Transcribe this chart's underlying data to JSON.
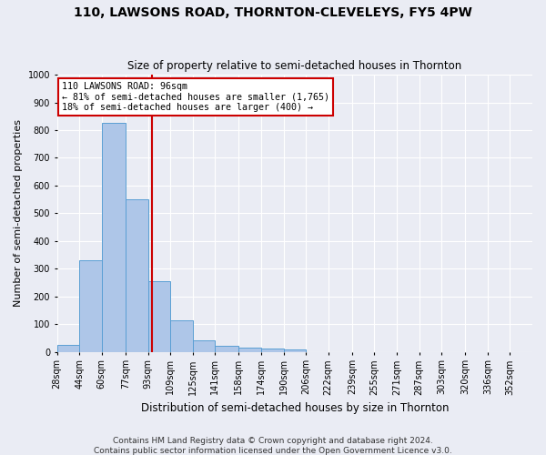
{
  "title": "110, LAWSONS ROAD, THORNTON-CLEVELEYS, FY5 4PW",
  "subtitle": "Size of property relative to semi-detached houses in Thornton",
  "xlabel": "Distribution of semi-detached houses by size in Thornton",
  "ylabel": "Number of semi-detached properties",
  "bin_labels": [
    "28sqm",
    "44sqm",
    "60sqm",
    "77sqm",
    "93sqm",
    "109sqm",
    "125sqm",
    "141sqm",
    "158sqm",
    "174sqm",
    "190sqm",
    "206sqm",
    "222sqm",
    "239sqm",
    "255sqm",
    "271sqm",
    "287sqm",
    "303sqm",
    "320sqm",
    "336sqm",
    "352sqm"
  ],
  "bin_edges": [
    28,
    44,
    60,
    77,
    93,
    109,
    125,
    141,
    158,
    174,
    190,
    206,
    222,
    239,
    255,
    271,
    287,
    303,
    320,
    336,
    352,
    368
  ],
  "bar_values": [
    25,
    330,
    825,
    550,
    255,
    115,
    42,
    20,
    15,
    12,
    7,
    0,
    0,
    0,
    0,
    0,
    0,
    0,
    0,
    0,
    0
  ],
  "bar_color": "#aec6e8",
  "bar_edge_color": "#5a9fd4",
  "property_size": 96,
  "annotation_text_line1": "110 LAWSONS ROAD: 96sqm",
  "annotation_text_line2": "← 81% of semi-detached houses are smaller (1,765)",
  "annotation_text_line3": "18% of semi-detached houses are larger (400) →",
  "vline_color": "#cc0000",
  "annotation_box_color": "#ffffff",
  "annotation_box_edge": "#cc0000",
  "footer_line1": "Contains HM Land Registry data © Crown copyright and database right 2024.",
  "footer_line2": "Contains public sector information licensed under the Open Government Licence v3.0.",
  "ylim": [
    0,
    1000
  ],
  "yticks": [
    0,
    100,
    200,
    300,
    400,
    500,
    600,
    700,
    800,
    900,
    1000
  ],
  "bg_color": "#eaecf4",
  "grid_color": "#ffffff",
  "title_fontsize": 10,
  "subtitle_fontsize": 8.5,
  "xlabel_fontsize": 8.5,
  "ylabel_fontsize": 8,
  "tick_fontsize": 7,
  "footer_fontsize": 6.5
}
